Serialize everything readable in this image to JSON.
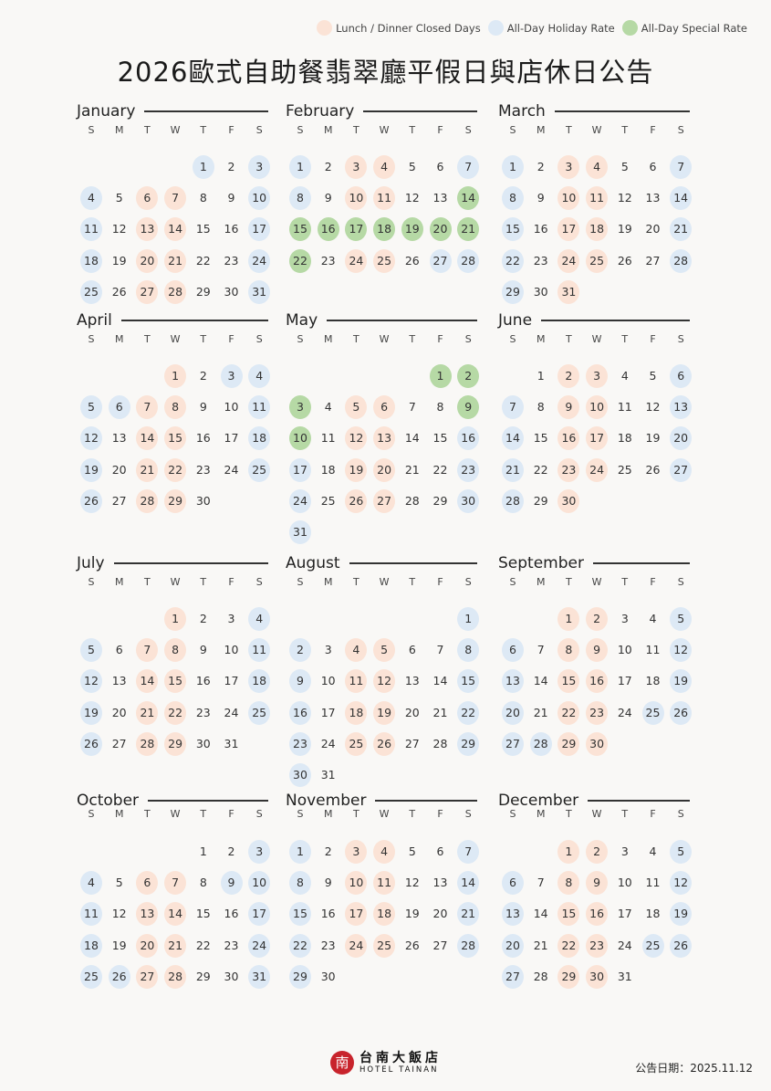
{
  "colors": {
    "closed": "#fbe3d6",
    "holiday": "#dde9f5",
    "special": "#b6d9a5"
  },
  "legend": [
    {
      "type": "closed",
      "label": "Lunch / Dinner Closed Days"
    },
    {
      "type": "holiday",
      "label": "All-Day Holiday Rate"
    },
    {
      "type": "special",
      "label": "All-Day Special Rate"
    }
  ],
  "title": "2026歐式自助餐翡翠廳平假日與店休日公告",
  "weekdays": [
    "S",
    "M",
    "T",
    "W",
    "T",
    "F",
    "S"
  ],
  "months": [
    {
      "name": "January",
      "start": 4,
      "days": 31,
      "closed": [
        6,
        7,
        13,
        14,
        20,
        21,
        27,
        28
      ],
      "holiday": [
        1,
        3,
        4,
        10,
        11,
        17,
        18,
        24,
        25,
        31
      ],
      "special": []
    },
    {
      "name": "February",
      "start": 0,
      "days": 28,
      "closed": [
        3,
        4,
        10,
        11,
        24,
        25
      ],
      "holiday": [
        1,
        7,
        8,
        27,
        28
      ],
      "special": [
        14,
        15,
        16,
        17,
        18,
        19,
        20,
        21,
        22
      ]
    },
    {
      "name": "March",
      "start": 0,
      "days": 31,
      "closed": [
        3,
        4,
        10,
        11,
        17,
        18,
        24,
        25,
        31
      ],
      "holiday": [
        1,
        7,
        8,
        14,
        15,
        21,
        22,
        28,
        29
      ],
      "special": []
    },
    {
      "name": "April",
      "start": 3,
      "days": 30,
      "closed": [
        1,
        7,
        8,
        14,
        15,
        21,
        22,
        28,
        29
      ],
      "holiday": [
        3,
        4,
        5,
        6,
        11,
        12,
        18,
        19,
        25,
        26
      ],
      "special": []
    },
    {
      "name": "May",
      "start": 5,
      "days": 31,
      "closed": [
        5,
        6,
        12,
        13,
        19,
        20,
        26,
        27
      ],
      "holiday": [
        16,
        17,
        23,
        24,
        30,
        31
      ],
      "special": [
        1,
        2,
        3,
        9,
        10
      ]
    },
    {
      "name": "June",
      "start": 1,
      "days": 30,
      "closed": [
        2,
        3,
        9,
        10,
        16,
        17,
        23,
        24,
        30
      ],
      "holiday": [
        6,
        7,
        13,
        14,
        20,
        21,
        27,
        28
      ],
      "special": []
    },
    {
      "name": "July",
      "start": 3,
      "days": 31,
      "closed": [
        1,
        7,
        8,
        14,
        15,
        21,
        22,
        28,
        29
      ],
      "holiday": [
        4,
        5,
        11,
        12,
        18,
        19,
        25,
        26
      ],
      "special": []
    },
    {
      "name": "August",
      "start": 6,
      "days": 31,
      "closed": [
        4,
        5,
        11,
        12,
        18,
        19,
        25,
        26
      ],
      "holiday": [
        1,
        2,
        8,
        9,
        15,
        16,
        22,
        23,
        29,
        30
      ],
      "special": []
    },
    {
      "name": "September",
      "start": 2,
      "days": 30,
      "closed": [
        1,
        2,
        8,
        9,
        15,
        16,
        22,
        23,
        29,
        30
      ],
      "holiday": [
        5,
        6,
        12,
        13,
        19,
        20,
        25,
        26,
        27,
        28
      ],
      "special": []
    },
    {
      "name": "October",
      "start": 4,
      "days": 31,
      "closed": [
        6,
        7,
        13,
        14,
        20,
        21,
        27,
        28
      ],
      "holiday": [
        3,
        4,
        9,
        10,
        11,
        17,
        18,
        24,
        25,
        26,
        31
      ],
      "special": []
    },
    {
      "name": "November",
      "start": 0,
      "days": 30,
      "closed": [
        3,
        4,
        10,
        11,
        17,
        18,
        24,
        25
      ],
      "holiday": [
        1,
        7,
        8,
        14,
        15,
        21,
        22,
        28,
        29
      ],
      "special": []
    },
    {
      "name": "December",
      "start": 2,
      "days": 31,
      "closed": [
        1,
        2,
        8,
        9,
        15,
        16,
        22,
        23,
        29,
        30
      ],
      "holiday": [
        5,
        6,
        12,
        13,
        19,
        20,
        25,
        26,
        27
      ],
      "special": []
    }
  ],
  "footer": {
    "logo_zh": "台南大飯店",
    "logo_en": "HOTEL TAINAN",
    "seal": "南",
    "date": "公告日期：2025.11.12"
  }
}
